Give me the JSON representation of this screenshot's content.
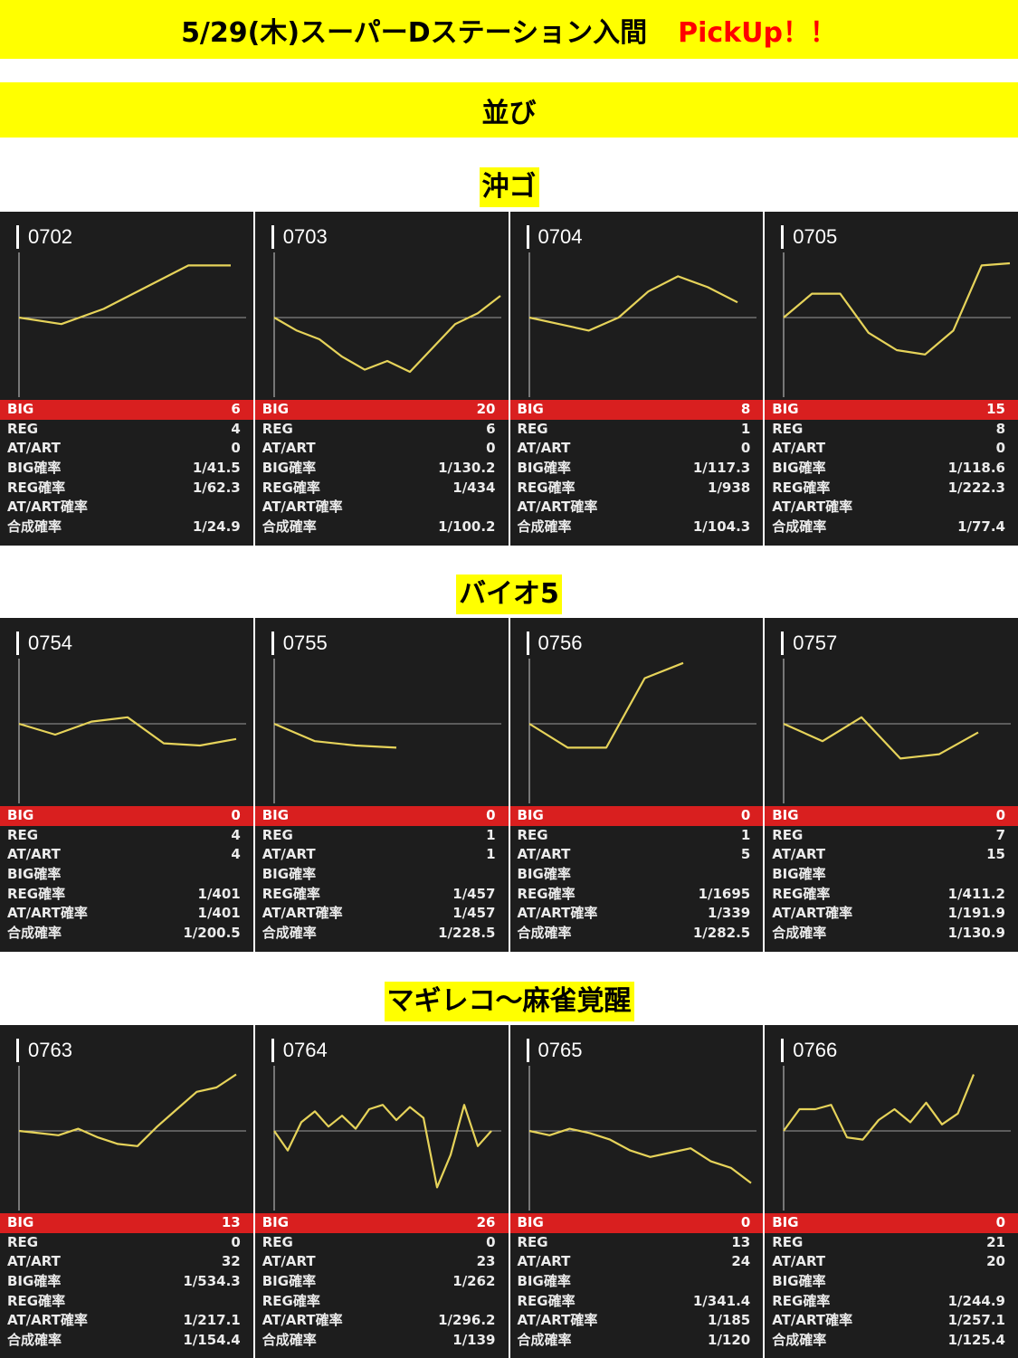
{
  "header": {
    "title": "5/29(木)スーパーDステーション入間",
    "pickup": "PickUp！！",
    "subtitle": "並び"
  },
  "colors": {
    "banner": "#ffff00",
    "card_bg": "#1d1d1d",
    "big_bar": "#d91f1f",
    "line": "#e6d35a"
  },
  "groups": [
    {
      "title": "沖ゴ",
      "machines": [
        {
          "id": "0702",
          "big": "6",
          "reg": "4",
          "atart": "0",
          "big_rate": "1/41.5",
          "reg_rate": "1/62.3",
          "atart_rate": "",
          "total_rate": "1/24.9",
          "trend": [
            0,
            -0.3,
            0.4,
            1.4,
            2.4,
            2.4
          ]
        },
        {
          "id": "0703",
          "big": "20",
          "reg": "6",
          "atart": "0",
          "big_rate": "1/130.2",
          "reg_rate": "1/434",
          "atart_rate": "",
          "total_rate": "1/100.2",
          "trend": [
            0,
            -0.6,
            -1.0,
            -1.8,
            -2.4,
            -2.0,
            -2.5,
            -1.4,
            -0.3,
            0.2,
            1.0
          ]
        },
        {
          "id": "0704",
          "big": "8",
          "reg": "1",
          "atart": "0",
          "big_rate": "1/117.3",
          "reg_rate": "1/938",
          "atart_rate": "",
          "total_rate": "1/104.3",
          "trend": [
            0,
            -0.3,
            -0.6,
            0,
            1.2,
            1.9,
            1.4,
            0.7
          ]
        },
        {
          "id": "0705",
          "big": "15",
          "reg": "8",
          "atart": "0",
          "big_rate": "1/118.6",
          "reg_rate": "1/222.3",
          "atart_rate": "",
          "total_rate": "1/77.4",
          "trend": [
            0,
            1.1,
            1.1,
            -0.7,
            -1.5,
            -1.7,
            -0.6,
            2.4,
            2.5
          ]
        }
      ]
    },
    {
      "title": "バイオ5",
      "machines": [
        {
          "id": "0754",
          "big": "0",
          "reg": "4",
          "atart": "4",
          "big_rate": "",
          "reg_rate": "1/401",
          "atart_rate": "1/401",
          "total_rate": "1/200.5",
          "trend": [
            0,
            -0.5,
            0.1,
            0.3,
            -0.9,
            -1.0,
            -0.7
          ]
        },
        {
          "id": "0755",
          "big": "0",
          "reg": "1",
          "atart": "1",
          "big_rate": "",
          "reg_rate": "1/457",
          "atart_rate": "1/457",
          "total_rate": "1/228.5",
          "trend": [
            0,
            -0.8,
            -1.0,
            -1.1
          ]
        },
        {
          "id": "0756",
          "big": "0",
          "reg": "1",
          "atart": "5",
          "big_rate": "",
          "reg_rate": "1/1695",
          "atart_rate": "1/339",
          "total_rate": "1/282.5",
          "trend": [
            0,
            -1.1,
            -1.1,
            2.1,
            2.8
          ]
        },
        {
          "id": "0757",
          "big": "0",
          "reg": "7",
          "atart": "15",
          "big_rate": "",
          "reg_rate": "1/411.2",
          "atart_rate": "1/191.9",
          "total_rate": "1/130.9",
          "trend": [
            0,
            -0.8,
            0.3,
            -1.6,
            -1.4,
            -0.4
          ]
        }
      ]
    },
    {
      "title": "マギレコ～麻雀覚醒",
      "machines": [
        {
          "id": "0763",
          "big": "13",
          "reg": "0",
          "atart": "32",
          "big_rate": "1/534.3",
          "reg_rate": "",
          "atart_rate": "1/217.1",
          "total_rate": "1/154.4",
          "trend": [
            0,
            -0.1,
            -0.2,
            0.1,
            -0.3,
            -0.6,
            -0.7,
            0.2,
            1.0,
            1.8,
            2.0,
            2.6
          ]
        },
        {
          "id": "0764",
          "big": "26",
          "reg": "0",
          "atart": "23",
          "big_rate": "1/262",
          "reg_rate": "",
          "atart_rate": "1/296.2",
          "total_rate": "1/139",
          "trend": [
            0,
            -0.9,
            0.4,
            0.9,
            0.2,
            0.7,
            0.1,
            1.0,
            1.2,
            0.5,
            1.1,
            0.6,
            -2.6,
            -1.1,
            1.2,
            -0.7,
            0
          ]
        },
        {
          "id": "0765",
          "big": "0",
          "reg": "13",
          "atart": "24",
          "big_rate": "",
          "reg_rate": "1/341.4",
          "atart_rate": "1/185",
          "total_rate": "1/120",
          "trend": [
            0,
            -0.2,
            0.1,
            -0.1,
            -0.4,
            -0.9,
            -1.2,
            -1.0,
            -0.8,
            -1.4,
            -1.7,
            -2.4
          ]
        },
        {
          "id": "0766",
          "big": "0",
          "reg": "21",
          "atart": "20",
          "big_rate": "",
          "reg_rate": "1/244.9",
          "atart_rate": "1/257.1",
          "total_rate": "1/125.4",
          "trend": [
            0,
            1.0,
            1.0,
            1.2,
            -0.3,
            -0.4,
            0.5,
            1.0,
            0.4,
            1.3,
            0.3,
            0.8,
            2.6
          ]
        }
      ]
    }
  ],
  "labels": {
    "big": "BIG",
    "reg": "REG",
    "atart": "AT/ART",
    "big_rate": "BIG確率",
    "reg_rate": "REG確率",
    "atart_rate": "AT/ART確率",
    "total_rate": "合成確率"
  }
}
